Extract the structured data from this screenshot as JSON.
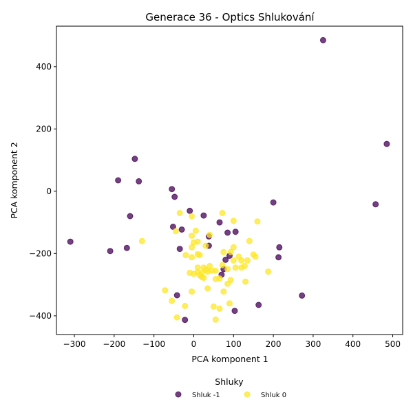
{
  "chart_data": {
    "type": "scatter",
    "title": "Generace 36 - Optics Shlukování",
    "xlabel": "PCA komponent 1",
    "ylabel": "PCA komponent 2",
    "xlim": [
      -345,
      525
    ],
    "ylim": [
      -460,
      530
    ],
    "x_ticks": [
      -300,
      -200,
      -100,
      0,
      100,
      200,
      300,
      400,
      500
    ],
    "y_ticks": [
      -400,
      -200,
      0,
      200,
      400
    ],
    "grid": false,
    "legend": {
      "title": "Shluky",
      "placement": "bottom-center",
      "entries": [
        {
          "label": "Shluk -1",
          "color": "#440154"
        },
        {
          "label": "Shluk 0",
          "color": "#fde725"
        }
      ]
    },
    "series": [
      {
        "name": "Shluk -1",
        "color": "#440154",
        "points": [
          [
            325,
            485
          ],
          [
            485,
            152
          ],
          [
            457,
            -42
          ],
          [
            200,
            -36
          ],
          [
            -148,
            104
          ],
          [
            -190,
            35
          ],
          [
            -138,
            32
          ],
          [
            -55,
            7
          ],
          [
            -48,
            -18
          ],
          [
            -160,
            -80
          ],
          [
            -310,
            -162
          ],
          [
            -210,
            -192
          ],
          [
            -168,
            -182
          ],
          [
            -52,
            -114
          ],
          [
            -30,
            -123
          ],
          [
            -10,
            -63
          ],
          [
            25,
            -78
          ],
          [
            65,
            -100
          ],
          [
            38,
            -145
          ],
          [
            38,
            -175
          ],
          [
            -35,
            -185
          ],
          [
            85,
            -133
          ],
          [
            105,
            -130
          ],
          [
            90,
            -207
          ],
          [
            80,
            -220
          ],
          [
            75,
            -250
          ],
          [
            70,
            -268
          ],
          [
            215,
            -180
          ],
          [
            213,
            -212
          ],
          [
            272,
            -335
          ],
          [
            163,
            -365
          ],
          [
            -42,
            -334
          ],
          [
            103,
            -384
          ],
          [
            -22,
            -413
          ]
        ]
      },
      {
        "name": "Shluk 0",
        "color": "#fde725",
        "points": [
          [
            -35,
            -70
          ],
          [
            -5,
            -80
          ],
          [
            72,
            -70
          ],
          [
            -45,
            -128
          ],
          [
            100,
            -95
          ],
          [
            160,
            -97
          ],
          [
            5,
            -127
          ],
          [
            40,
            -140
          ],
          [
            -5,
            -143
          ],
          [
            140,
            -160
          ],
          [
            -130,
            -160
          ],
          [
            0,
            -165
          ],
          [
            10,
            -162
          ],
          [
            30,
            -175
          ],
          [
            -5,
            -180
          ],
          [
            100,
            -180
          ],
          [
            75,
            -195
          ],
          [
            93,
            -195
          ],
          [
            10,
            -202
          ],
          [
            15,
            -205
          ],
          [
            -20,
            -205
          ],
          [
            -5,
            -212
          ],
          [
            150,
            -203
          ],
          [
            155,
            -210
          ],
          [
            113,
            -210
          ],
          [
            120,
            -222
          ],
          [
            100,
            -222
          ],
          [
            135,
            -222
          ],
          [
            120,
            -245
          ],
          [
            128,
            -240
          ],
          [
            105,
            -245
          ],
          [
            72,
            -237
          ],
          [
            40,
            -240
          ],
          [
            25,
            -245
          ],
          [
            10,
            -245
          ],
          [
            30,
            -252
          ],
          [
            45,
            -255
          ],
          [
            55,
            -255
          ],
          [
            85,
            -250
          ],
          [
            187,
            -258
          ],
          [
            -10,
            -262
          ],
          [
            0,
            -265
          ],
          [
            10,
            -260
          ],
          [
            20,
            -262
          ],
          [
            35,
            -258
          ],
          [
            15,
            -270
          ],
          [
            20,
            -275
          ],
          [
            25,
            -278
          ],
          [
            55,
            -282
          ],
          [
            65,
            -280
          ],
          [
            93,
            -285
          ],
          [
            130,
            -290
          ],
          [
            85,
            -297
          ],
          [
            35,
            -312
          ],
          [
            -72,
            -318
          ],
          [
            -5,
            -322
          ],
          [
            75,
            -322
          ],
          [
            90,
            -360
          ],
          [
            -55,
            -352
          ],
          [
            -22,
            -368
          ],
          [
            50,
            -370
          ],
          [
            65,
            -377
          ],
          [
            -42,
            -405
          ],
          [
            55,
            -412
          ]
        ]
      }
    ]
  }
}
